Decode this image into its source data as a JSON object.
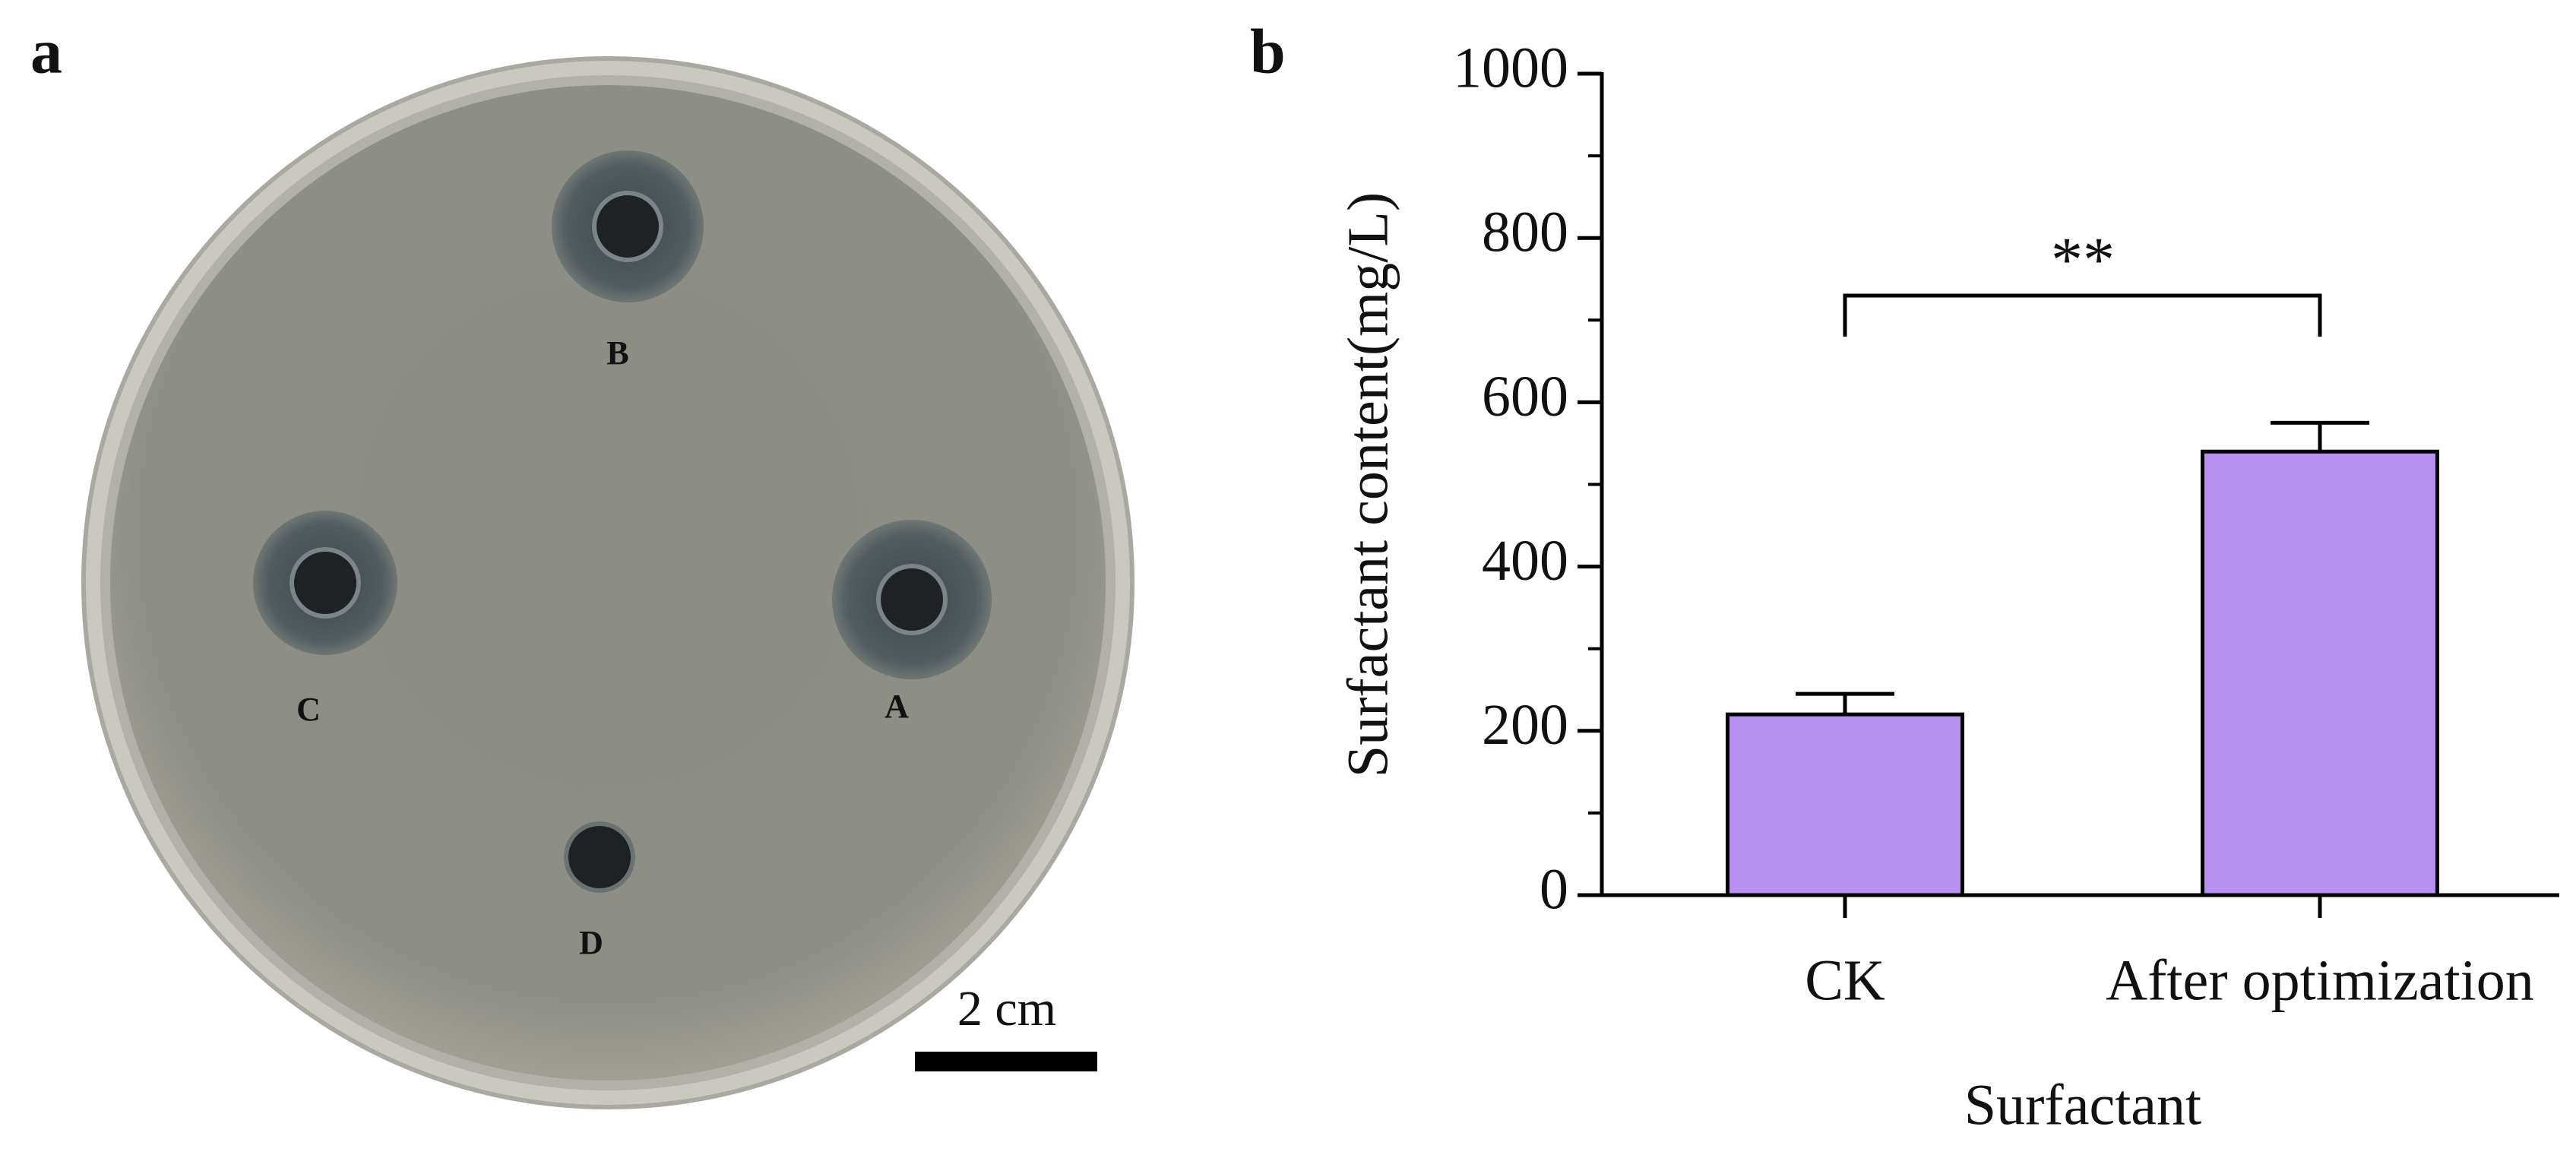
{
  "panel_a": {
    "label": "a",
    "well_labels": [
      "B",
      "C",
      "A",
      "D"
    ],
    "scale_bar": "2 cm"
  },
  "chart_data": {
    "type": "bar",
    "panel_label": "b",
    "categories": [
      "CK",
      "After optimization"
    ],
    "values": [
      220,
      540
    ],
    "errors": [
      25,
      35
    ],
    "color": "#b98ff2",
    "ylim": [
      0,
      1000
    ],
    "yticks": [
      0,
      200,
      400,
      600,
      800,
      1000
    ],
    "yminor_ticks": [
      100,
      300,
      500,
      700,
      900
    ],
    "ylabel": "Surfactant content(mg/L)",
    "xlabel": "Surfactant",
    "annotation": "**"
  }
}
